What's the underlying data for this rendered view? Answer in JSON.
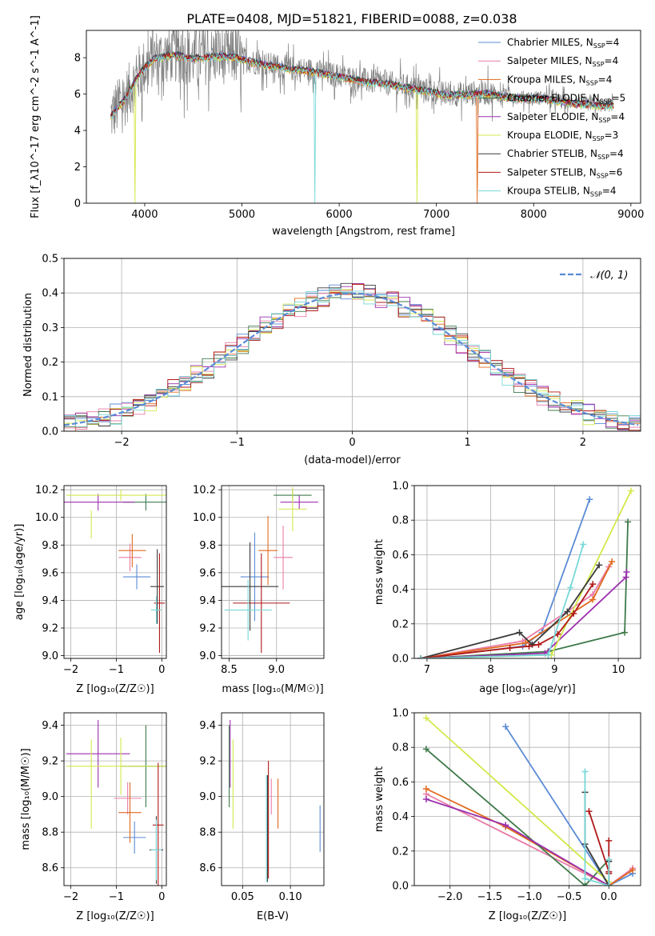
{
  "title": "PLATE=0408, MJD=51821, FIBERID=0088, z=0.038",
  "colors": {
    "chabrier_miles": "#5b8bd6",
    "salpeter_miles": "#e87ca8",
    "kroupa_miles": "#e06a1e",
    "chabrier_elodie": "#3e7a4a",
    "salpeter_elodie": "#9b2fae",
    "kroupa_elodie": "#d4e84a",
    "chabrier_stelib": "#3a3a3a",
    "salpeter_stelib": "#b01818",
    "kroupa_stelib": "#78d8d8",
    "data": "#808080",
    "normal": "#5b8bd6"
  },
  "chart_data": [
    {
      "id": "spectrum",
      "type": "line",
      "xlabel": "wavelength [Angstrom, rest frame]",
      "ylabel": "Flux [f_λ10^-17 erg cm^-2 s^-1 A^-1]",
      "xlim": [
        3400,
        9100
      ],
      "ylim": [
        0,
        9.5
      ],
      "xticks": [
        "4000",
        "5000",
        "6000",
        "7000",
        "8000",
        "9000"
      ],
      "yticks": [
        "0",
        "2",
        "4",
        "6",
        "8"
      ],
      "legend": [
        {
          "label": "Chabrier MILES, N",
          "sub": "SSP",
          "tail": "=4",
          "color_key": "chabrier_miles"
        },
        {
          "label": "Salpeter MILES, N",
          "sub": "SSP",
          "tail": "=4",
          "color_key": "salpeter_miles"
        },
        {
          "label": "Kroupa MILES, N",
          "sub": "SSP",
          "tail": "=4",
          "color_key": "kroupa_miles"
        },
        {
          "label": "Chabrier ELODIE, N",
          "sub": "SSP",
          "tail": "=5",
          "color_key": "chabrier_elodie"
        },
        {
          "label": "Salpeter ELODIE, N",
          "sub": "SSP",
          "tail": "=4",
          "color_key": "salpeter_elodie"
        },
        {
          "label": "Kroupa ELODIE, N",
          "sub": "SSP",
          "tail": "=3",
          "color_key": "kroupa_elodie"
        },
        {
          "label": "Chabrier STELIB, N",
          "sub": "SSP",
          "tail": "=4",
          "color_key": "chabrier_stelib"
        },
        {
          "label": "Salpeter STELIB, N",
          "sub": "SSP",
          "tail": "=6",
          "color_key": "salpeter_stelib"
        },
        {
          "label": "Kroupa STELIB, N",
          "sub": "SSP",
          "tail": "=4",
          "color_key": "kroupa_stelib"
        }
      ],
      "continuum": [
        [
          3650,
          4.8
        ],
        [
          3800,
          5.8
        ],
        [
          3950,
          7.2
        ],
        [
          4100,
          8.0
        ],
        [
          4300,
          8.2
        ],
        [
          4500,
          8.0
        ],
        [
          4700,
          8.1
        ],
        [
          4900,
          8.1
        ],
        [
          5100,
          7.8
        ],
        [
          5300,
          7.6
        ],
        [
          5500,
          7.4
        ],
        [
          5700,
          7.3
        ],
        [
          5900,
          7.1
        ],
        [
          6100,
          6.9
        ],
        [
          6300,
          6.7
        ],
        [
          6500,
          6.6
        ],
        [
          6700,
          6.4
        ],
        [
          6900,
          6.2
        ],
        [
          7100,
          6.0
        ],
        [
          7300,
          6.0
        ],
        [
          7500,
          6.1
        ],
        [
          7700,
          5.9
        ],
        [
          7900,
          5.8
        ],
        [
          8100,
          5.8
        ],
        [
          8300,
          5.6
        ],
        [
          8500,
          5.5
        ],
        [
          8700,
          5.4
        ],
        [
          8820,
          5.4
        ]
      ],
      "model_drops": [
        {
          "x": 3900,
          "color_key": "kroupa_elodie"
        },
        {
          "x": 5750,
          "color_key": "kroupa_stelib"
        },
        {
          "x": 6800,
          "color_key": "kroupa_elodie"
        },
        {
          "x": 7420,
          "color_key": "kroupa_miles"
        }
      ]
    },
    {
      "id": "residuals",
      "type": "line",
      "xlabel": "(data-model)/error",
      "ylabel": "Normed distribution",
      "xlim": [
        -2.5,
        2.5
      ],
      "ylim": [
        0,
        0.5
      ],
      "xticks": [
        "−2",
        "−1",
        "0",
        "1",
        "2"
      ],
      "yticks": [
        "0.0",
        "0.1",
        "0.2",
        "0.3",
        "0.4",
        "0.5"
      ],
      "grid": true,
      "legend_label": "𝒩(0, 1)",
      "bin_width": 0.1
    },
    {
      "id": "age_vs_Z",
      "type": "scatter",
      "xlabel": "Z [log₁₀(Z/Z☉)]",
      "ylabel": "age  [log₁₀(age/yr)]",
      "xlim": [
        -2.15,
        0.1
      ],
      "ylim": [
        8.98,
        10.23
      ],
      "xticks": [
        -2,
        -1,
        0
      ],
      "yticks": [
        "9.0",
        "9.2",
        "9.4",
        "9.6",
        "9.8",
        "10.0",
        "10.2"
      ],
      "points": [
        {
          "x": -0.55,
          "xerr": 0.3,
          "y": 9.57,
          "yerr": 0.09,
          "color_key": "chabrier_miles"
        },
        {
          "x": -0.7,
          "xerr": 0.25,
          "y": 9.71,
          "yerr": 0.1,
          "color_key": "salpeter_miles"
        },
        {
          "x": -0.65,
          "xerr": 0.3,
          "y": 9.76,
          "yerr": 0.12,
          "color_key": "kroupa_miles"
        },
        {
          "x": -0.35,
          "xerr": 0.5,
          "y": 10.11,
          "yerr": 0.06,
          "color_key": "chabrier_elodie"
        },
        {
          "x": -1.4,
          "xerr": 0.8,
          "y": 10.11,
          "yerr": 0.06,
          "color_key": "salpeter_elodie"
        },
        {
          "x": -0.9,
          "xerr": 1.2,
          "y": 10.16,
          "yerr": 0.04,
          "color_key": "kroupa_elodie"
        },
        {
          "x": -0.1,
          "xerr": 0.15,
          "y": 9.5,
          "yerr": 0.27,
          "color_key": "chabrier_stelib"
        },
        {
          "x": -0.05,
          "xerr": 0.12,
          "y": 9.38,
          "yerr": 0.36,
          "color_key": "salpeter_stelib"
        },
        {
          "x": -0.12,
          "xerr": 0.12,
          "y": 9.33,
          "yerr": 0.1,
          "color_key": "kroupa_stelib"
        },
        {
          "x": -1.55,
          "xerr": 0.0,
          "y": 9.95,
          "yerr": 0.1,
          "color_key": "kroupa_elodie"
        }
      ]
    },
    {
      "id": "age_vs_mass",
      "type": "scatter",
      "xlabel": "mass [log₁₀(M/M☉)]",
      "ylabel": "",
      "xlim": [
        8.42,
        9.5
      ],
      "ylim": [
        8.98,
        10.23
      ],
      "xticks": [
        "8.5",
        "9.0"
      ],
      "yticks": [
        "9.0",
        "9.2",
        "9.4",
        "9.6",
        "9.8",
        "10.0",
        "10.2"
      ],
      "points": [
        {
          "x": 8.77,
          "xerr": 0.15,
          "y": 9.57,
          "yerr": 0.32,
          "color_key": "chabrier_miles"
        },
        {
          "x": 9.07,
          "xerr": 0.1,
          "y": 9.71,
          "yerr": 0.23,
          "color_key": "salpeter_miles"
        },
        {
          "x": 8.91,
          "xerr": 0.1,
          "y": 9.76,
          "yerr": 0.25,
          "color_key": "kroupa_miles"
        },
        {
          "x": 9.17,
          "xerr": 0.2,
          "y": 10.16,
          "yerr": 0.04,
          "color_key": "chabrier_elodie"
        },
        {
          "x": 9.24,
          "xerr": 0.2,
          "y": 10.11,
          "yerr": 0.05,
          "color_key": "salpeter_elodie"
        },
        {
          "x": 9.17,
          "xerr": 0.15,
          "y": 10.06,
          "yerr": 0.16,
          "color_key": "kroupa_elodie"
        },
        {
          "x": 8.72,
          "xerr": 0.3,
          "y": 9.5,
          "yerr": 0.32,
          "color_key": "chabrier_stelib"
        },
        {
          "x": 8.84,
          "xerr": 0.3,
          "y": 9.38,
          "yerr": 0.36,
          "color_key": "salpeter_stelib"
        },
        {
          "x": 8.7,
          "xerr": 0.25,
          "y": 9.33,
          "yerr": 0.22,
          "color_key": "kroupa_stelib"
        }
      ]
    },
    {
      "id": "weight_vs_age",
      "type": "line",
      "xlabel": "age  [log₁₀(age/yr)]",
      "ylabel": "mass weight",
      "xlim": [
        6.8,
        10.35
      ],
      "ylim": [
        0,
        1
      ],
      "xticks": [
        7,
        8,
        9,
        10
      ],
      "yticks": [
        "0.0",
        "0.2",
        "0.4",
        "0.6",
        "0.8",
        "1.0"
      ],
      "grid": true,
      "series": [
        {
          "color_key": "chabrier_miles",
          "x": [
            6.9,
            8.5,
            8.8,
            9.55
          ],
          "y": [
            0.0,
            0.07,
            0.15,
            0.92
          ]
        },
        {
          "color_key": "salpeter_miles",
          "x": [
            6.9,
            8.5,
            9.6,
            9.85
          ],
          "y": [
            0.0,
            0.1,
            0.37,
            0.53
          ]
        },
        {
          "color_key": "kroupa_miles",
          "x": [
            6.9,
            8.55,
            9.6,
            9.9
          ],
          "y": [
            0.0,
            0.09,
            0.34,
            0.56
          ]
        },
        {
          "color_key": "chabrier_elodie",
          "x": [
            6.9,
            8.9,
            10.1,
            10.15
          ],
          "y": [
            0.0,
            0.04,
            0.15,
            0.79
          ]
        },
        {
          "color_key": "salpeter_elodie",
          "x": [
            6.9,
            8.85,
            10.12,
            10.13
          ],
          "y": [
            0.0,
            0.03,
            0.47,
            0.5
          ]
        },
        {
          "color_key": "kroupa_elodie",
          "x": [
            6.9,
            8.95,
            10.2
          ],
          "y": [
            0.0,
            0.02,
            0.97
          ]
        },
        {
          "color_key": "chabrier_stelib",
          "x": [
            6.9,
            8.45,
            8.65,
            9.2,
            9.7
          ],
          "y": [
            0.0,
            0.15,
            0.08,
            0.27,
            0.54
          ]
        },
        {
          "color_key": "salpeter_stelib",
          "x": [
            6.9,
            8.3,
            8.6,
            8.75,
            9.05,
            9.3,
            9.6
          ],
          "y": [
            0.0,
            0.06,
            0.07,
            0.08,
            0.14,
            0.26,
            0.43
          ]
        },
        {
          "color_key": "kroupa_stelib",
          "x": [
            6.9,
            8.9,
            9.25,
            9.45
          ],
          "y": [
            0.0,
            0.02,
            0.41,
            0.66
          ]
        }
      ]
    },
    {
      "id": "mass_vs_Z",
      "type": "scatter",
      "xlabel": "Z [log₁₀(Z/Z☉)]",
      "ylabel": "mass [log₁₀(M/M☉)]",
      "xlim": [
        -2.15,
        0.1
      ],
      "ylim": [
        8.5,
        9.47
      ],
      "xticks": [
        -2,
        -1,
        0
      ],
      "yticks": [
        "8.6",
        "8.8",
        "9.0",
        "9.2",
        "9.4"
      ],
      "points": [
        {
          "x": -0.6,
          "xerr": 0.25,
          "y": 8.77,
          "yerr": 0.09,
          "color_key": "chabrier_miles"
        },
        {
          "x": -0.75,
          "xerr": 0.3,
          "y": 8.99,
          "yerr": 0.09,
          "color_key": "salpeter_miles"
        },
        {
          "x": -0.7,
          "xerr": 0.25,
          "y": 8.91,
          "yerr": 0.17,
          "color_key": "kroupa_miles"
        },
        {
          "x": -0.35,
          "xerr": 0.55,
          "y": 9.17,
          "yerr": 0.23,
          "color_key": "chabrier_elodie"
        },
        {
          "x": -1.4,
          "xerr": 0.7,
          "y": 9.24,
          "yerr": 0.19,
          "color_key": "salpeter_elodie"
        },
        {
          "x": -0.9,
          "xerr": 1.2,
          "y": 9.17,
          "yerr": 0.16,
          "color_key": "kroupa_elodie"
        },
        {
          "x": -0.12,
          "xerr": 0.15,
          "y": 8.7,
          "yerr": 0.19,
          "color_key": "chabrier_stelib"
        },
        {
          "x": -0.08,
          "xerr": 0.12,
          "y": 8.84,
          "yerr": 0.35,
          "color_key": "salpeter_stelib"
        },
        {
          "x": -0.12,
          "xerr": 0.12,
          "y": 8.7,
          "yerr": 0.17,
          "color_key": "kroupa_stelib"
        },
        {
          "x": -1.55,
          "xerr": 0.0,
          "y": 9.07,
          "yerr": 0.25,
          "color_key": "kroupa_elodie"
        }
      ]
    },
    {
      "id": "ebv",
      "type": "scatter",
      "xlabel": "E(B-V)",
      "ylabel": "",
      "xlim": [
        0.028,
        0.135
      ],
      "ylim": [
        8.5,
        9.47
      ],
      "xticks": [
        "0.05",
        "0.10"
      ],
      "yticks": [
        "8.6",
        "8.8",
        "9.0",
        "9.2",
        "9.4"
      ],
      "points": [
        {
          "x": 0.131,
          "y": 8.82,
          "yerr": 0.13,
          "color_key": "chabrier_miles"
        },
        {
          "x": 0.08,
          "y": 9.0,
          "yerr": 0.1,
          "color_key": "salpeter_miles"
        },
        {
          "x": 0.087,
          "y": 8.96,
          "yerr": 0.14,
          "color_key": "kroupa_miles"
        },
        {
          "x": 0.036,
          "y": 9.17,
          "yerr": 0.23,
          "color_key": "chabrier_elodie"
        },
        {
          "x": 0.037,
          "y": 9.24,
          "yerr": 0.19,
          "color_key": "salpeter_elodie"
        },
        {
          "x": 0.04,
          "y": 9.07,
          "yerr": 0.25,
          "color_key": "kroupa_elodie"
        },
        {
          "x": 0.076,
          "y": 8.82,
          "yerr": 0.3,
          "color_key": "chabrier_stelib"
        },
        {
          "x": 0.077,
          "y": 8.87,
          "yerr": 0.33,
          "color_key": "salpeter_stelib"
        },
        {
          "x": 0.075,
          "y": 8.82,
          "yerr": 0.3,
          "color_key": "kroupa_stelib"
        }
      ]
    },
    {
      "id": "weight_vs_Z",
      "type": "line",
      "xlabel": "Z [log₁₀(Z/Z☉)]",
      "ylabel": "mass weight",
      "xlim": [
        -2.45,
        0.4
      ],
      "ylim": [
        0,
        1
      ],
      "xticks": [
        "−2.0",
        "−1.5",
        "−1.0",
        "−0.5",
        "0.0"
      ],
      "yticks": [
        "0.0",
        "0.2",
        "0.4",
        "0.6",
        "0.8",
        "1.0"
      ],
      "grid": true,
      "series": [
        {
          "color_key": "chabrier_miles",
          "x": [
            -1.3,
            0.0,
            0.3
          ],
          "y": [
            0.92,
            0.0,
            0.07
          ]
        },
        {
          "color_key": "salpeter_miles",
          "x": [
            -2.3,
            0.0,
            0.3
          ],
          "y": [
            0.53,
            0.0,
            0.1
          ]
        },
        {
          "color_key": "kroupa_miles",
          "x": [
            -2.3,
            -1.3,
            0.0,
            0.3
          ],
          "y": [
            0.56,
            0.34,
            0.0,
            0.09
          ]
        },
        {
          "color_key": "chabrier_elodie",
          "x": [
            -2.3,
            -0.3,
            0.0
          ],
          "y": [
            0.79,
            0.0,
            0.15
          ]
        },
        {
          "color_key": "salpeter_elodie",
          "x": [
            -2.3,
            -1.3,
            0.0
          ],
          "y": [
            0.5,
            0.35,
            0.0
          ]
        },
        {
          "color_key": "kroupa_elodie",
          "x": [
            -2.3,
            0.0
          ],
          "y": [
            0.97,
            0.02
          ]
        },
        {
          "color_key": "chabrier_stelib",
          "x": [
            -0.3,
            -0.3,
            0.0,
            0.0
          ],
          "y": [
            0.54,
            0.24,
            0.0,
            0.14
          ]
        },
        {
          "color_key": "salpeter_stelib",
          "x": [
            -0.25,
            0.0,
            0.0,
            0.0
          ],
          "y": [
            0.43,
            0.08,
            0.07,
            0.26
          ]
        },
        {
          "color_key": "kroupa_stelib",
          "x": [
            -0.3,
            -0.3,
            0.0,
            0.0
          ],
          "y": [
            0.66,
            0.04,
            0.0,
            0.15
          ]
        }
      ]
    }
  ]
}
